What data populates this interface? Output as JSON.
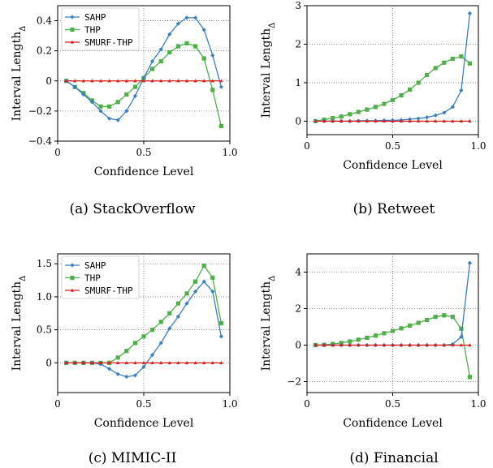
{
  "chart_data": [
    {
      "type": "line",
      "caption": "(a) StackOverflow",
      "xlabel": "Confidence Level",
      "ylabel": "Interval Length",
      "ylabel_sub": "Δ",
      "xlim": [
        0,
        1
      ],
      "ylim": [
        -0.4,
        0.5
      ],
      "xticks": [
        0,
        0.5,
        1.0
      ],
      "xtick_labels": [
        "0",
        "0.5",
        "1.0"
      ],
      "yticks": [
        -0.4,
        -0.2,
        0,
        0.2,
        0.4
      ],
      "ytick_labels": [
        "−0.4",
        "−0.2",
        "0",
        "0.2",
        "0.4"
      ],
      "grid": "dotted",
      "legend": "top-left",
      "x": [
        0.05,
        0.1,
        0.15,
        0.2,
        0.25,
        0.3,
        0.35,
        0.4,
        0.45,
        0.5,
        0.55,
        0.6,
        0.65,
        0.7,
        0.75,
        0.8,
        0.85,
        0.9,
        0.95
      ],
      "series": [
        {
          "name": "SAHP",
          "color": "#3a7fc0",
          "marker": "diamond",
          "values": [
            0.0,
            -0.04,
            -0.09,
            -0.14,
            -0.2,
            -0.25,
            -0.26,
            -0.2,
            -0.1,
            0.02,
            0.13,
            0.21,
            0.31,
            0.38,
            0.42,
            0.42,
            0.34,
            0.17,
            -0.04
          ]
        },
        {
          "name": "THP",
          "color": "#4fb04a",
          "marker": "square",
          "values": [
            0.0,
            -0.04,
            -0.08,
            -0.13,
            -0.17,
            -0.17,
            -0.14,
            -0.09,
            -0.04,
            0.02,
            0.08,
            0.13,
            0.19,
            0.23,
            0.25,
            0.23,
            0.15,
            -0.06,
            -0.3
          ]
        },
        {
          "name": "SMURF-THP",
          "color": "#d62020",
          "marker": "triangle",
          "values": [
            0,
            0,
            0,
            0,
            0,
            0,
            0,
            0,
            0,
            0,
            0,
            0,
            0,
            0,
            0,
            0,
            0,
            0,
            0
          ]
        }
      ]
    },
    {
      "type": "line",
      "caption": "(b) Retweet",
      "xlabel": "Confidence Level",
      "ylabel": "Interval Length",
      "ylabel_sub": "Δ",
      "xlim": [
        0,
        1
      ],
      "ylim": [
        -0.35,
        3
      ],
      "xticks": [
        0,
        0.5,
        1.0
      ],
      "xtick_labels": [
        "0",
        "0.5",
        "1.0"
      ],
      "yticks": [
        0,
        1,
        2,
        3
      ],
      "ytick_labels": [
        "0",
        "1",
        "2",
        "3"
      ],
      "grid": "dotted",
      "legend": "none",
      "x": [
        0.05,
        0.1,
        0.15,
        0.2,
        0.25,
        0.3,
        0.35,
        0.4,
        0.45,
        0.5,
        0.55,
        0.6,
        0.65,
        0.7,
        0.75,
        0.8,
        0.85,
        0.9,
        0.95
      ],
      "series": [
        {
          "name": "SAHP",
          "color": "#3a7fc0",
          "marker": "diamond",
          "values": [
            0.0,
            0.0,
            0.0,
            0.0,
            0.0,
            0.01,
            0.01,
            0.01,
            0.02,
            0.02,
            0.03,
            0.05,
            0.07,
            0.1,
            0.15,
            0.22,
            0.37,
            0.8,
            2.8
          ]
        },
        {
          "name": "THP",
          "color": "#4fb04a",
          "marker": "square",
          "values": [
            0.0,
            0.04,
            0.08,
            0.12,
            0.18,
            0.24,
            0.3,
            0.37,
            0.45,
            0.55,
            0.67,
            0.82,
            1.0,
            1.2,
            1.38,
            1.52,
            1.62,
            1.68,
            1.5
          ]
        },
        {
          "name": "SMURF-THP",
          "color": "#d62020",
          "marker": "triangle",
          "values": [
            0,
            0,
            0,
            0,
            0,
            0,
            0,
            0,
            0,
            0,
            0,
            0,
            0,
            0,
            0,
            0,
            0,
            0,
            0
          ]
        }
      ]
    },
    {
      "type": "line",
      "caption": "(c) MIMIC-II",
      "xlabel": "Confidence Level",
      "ylabel": "Interval Length",
      "ylabel_sub": "Δ",
      "xlim": [
        0,
        1
      ],
      "ylim": [
        -0.45,
        1.65
      ],
      "xticks": [
        0,
        0.5,
        1.0
      ],
      "xtick_labels": [
        "0",
        "0.5",
        "1.0"
      ],
      "yticks": [
        0,
        0.5,
        1.0,
        1.5
      ],
      "ytick_labels": [
        "0",
        "0.5",
        "1.0",
        "1.5"
      ],
      "grid": "dotted",
      "legend": "top-left",
      "x": [
        0.05,
        0.1,
        0.15,
        0.2,
        0.25,
        0.3,
        0.35,
        0.4,
        0.45,
        0.5,
        0.55,
        0.6,
        0.65,
        0.7,
        0.75,
        0.8,
        0.85,
        0.9,
        0.95
      ],
      "series": [
        {
          "name": "SAHP",
          "color": "#3a7fc0",
          "marker": "diamond",
          "values": [
            0.0,
            0.0,
            0.0,
            0.0,
            -0.02,
            -0.09,
            -0.17,
            -0.21,
            -0.19,
            -0.06,
            0.12,
            0.3,
            0.52,
            0.7,
            0.9,
            1.08,
            1.23,
            1.08,
            0.4
          ]
        },
        {
          "name": "THP",
          "color": "#4fb04a",
          "marker": "square",
          "values": [
            0.0,
            0.0,
            0.0,
            0.0,
            0.0,
            0.0,
            0.08,
            0.18,
            0.3,
            0.4,
            0.5,
            0.62,
            0.75,
            0.9,
            1.05,
            1.23,
            1.47,
            1.29,
            0.6
          ]
        },
        {
          "name": "SMURF-THP",
          "color": "#d62020",
          "marker": "triangle",
          "values": [
            0,
            0,
            0,
            0,
            0,
            0,
            0,
            0,
            0,
            0,
            0,
            0,
            0,
            0,
            0,
            0,
            0,
            0,
            0
          ]
        }
      ]
    },
    {
      "type": "line",
      "caption": "(d) Financial",
      "xlabel": "Confidence Level",
      "ylabel": "Interval Length",
      "ylabel_sub": "Δ",
      "xlim": [
        0,
        1
      ],
      "ylim": [
        -2.6,
        5
      ],
      "xticks": [
        0,
        0.5,
        1.0
      ],
      "xtick_labels": [
        "0",
        "0.5",
        "1.0"
      ],
      "yticks": [
        -2,
        0,
        2,
        4
      ],
      "ytick_labels": [
        "−2",
        "0",
        "2",
        "4"
      ],
      "grid": "dotted",
      "legend": "none",
      "x": [
        0.05,
        0.1,
        0.15,
        0.2,
        0.25,
        0.3,
        0.35,
        0.4,
        0.45,
        0.5,
        0.55,
        0.6,
        0.65,
        0.7,
        0.75,
        0.8,
        0.85,
        0.9,
        0.95
      ],
      "series": [
        {
          "name": "SAHP",
          "color": "#3a7fc0",
          "marker": "diamond",
          "values": [
            0.0,
            0.0,
            0.0,
            0.0,
            0.0,
            0.0,
            0.0,
            0.0,
            0.0,
            0.0,
            0.0,
            0.0,
            0.0,
            0.0,
            0.0,
            0.0,
            0.05,
            0.45,
            4.5
          ]
        },
        {
          "name": "THP",
          "color": "#4fb04a",
          "marker": "square",
          "values": [
            0.0,
            0.02,
            0.06,
            0.12,
            0.2,
            0.3,
            0.4,
            0.52,
            0.65,
            0.78,
            0.92,
            1.07,
            1.22,
            1.38,
            1.55,
            1.63,
            1.55,
            0.9,
            -1.75
          ]
        },
        {
          "name": "SMURF-THP",
          "color": "#d62020",
          "marker": "triangle",
          "values": [
            0,
            0,
            0,
            0,
            0,
            0,
            0,
            0,
            0,
            0,
            0,
            0,
            0,
            0,
            0,
            0,
            0,
            0,
            0
          ]
        }
      ]
    }
  ]
}
